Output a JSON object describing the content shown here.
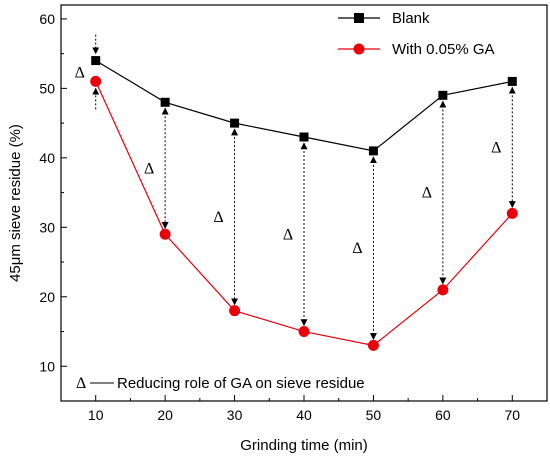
{
  "chart_data": {
    "type": "line",
    "xlabel": "Grinding time (min)",
    "ylabel": "45μm sieve residue (%)",
    "xlim": [
      5,
      75
    ],
    "ylim": [
      5,
      62
    ],
    "x_ticks": [
      10,
      20,
      30,
      40,
      50,
      60,
      70
    ],
    "y_ticks": [
      10,
      20,
      30,
      40,
      50,
      60
    ],
    "x": [
      10,
      20,
      30,
      40,
      50,
      60,
      70
    ],
    "series": [
      {
        "name": "Blank",
        "values": [
          54,
          48,
          45,
          43,
          41,
          49,
          51
        ],
        "color": "#000000",
        "marker": "square"
      },
      {
        "name": "With 0.05% GA",
        "values": [
          51,
          29,
          18,
          15,
          13,
          21,
          32
        ],
        "color": "#e8000b",
        "marker": "circle"
      }
    ],
    "legend": {
      "position": "top-right"
    },
    "annotation_symbol": "Δ",
    "annotation_note": "Reducing role of GA on sieve residue",
    "grid": false
  }
}
